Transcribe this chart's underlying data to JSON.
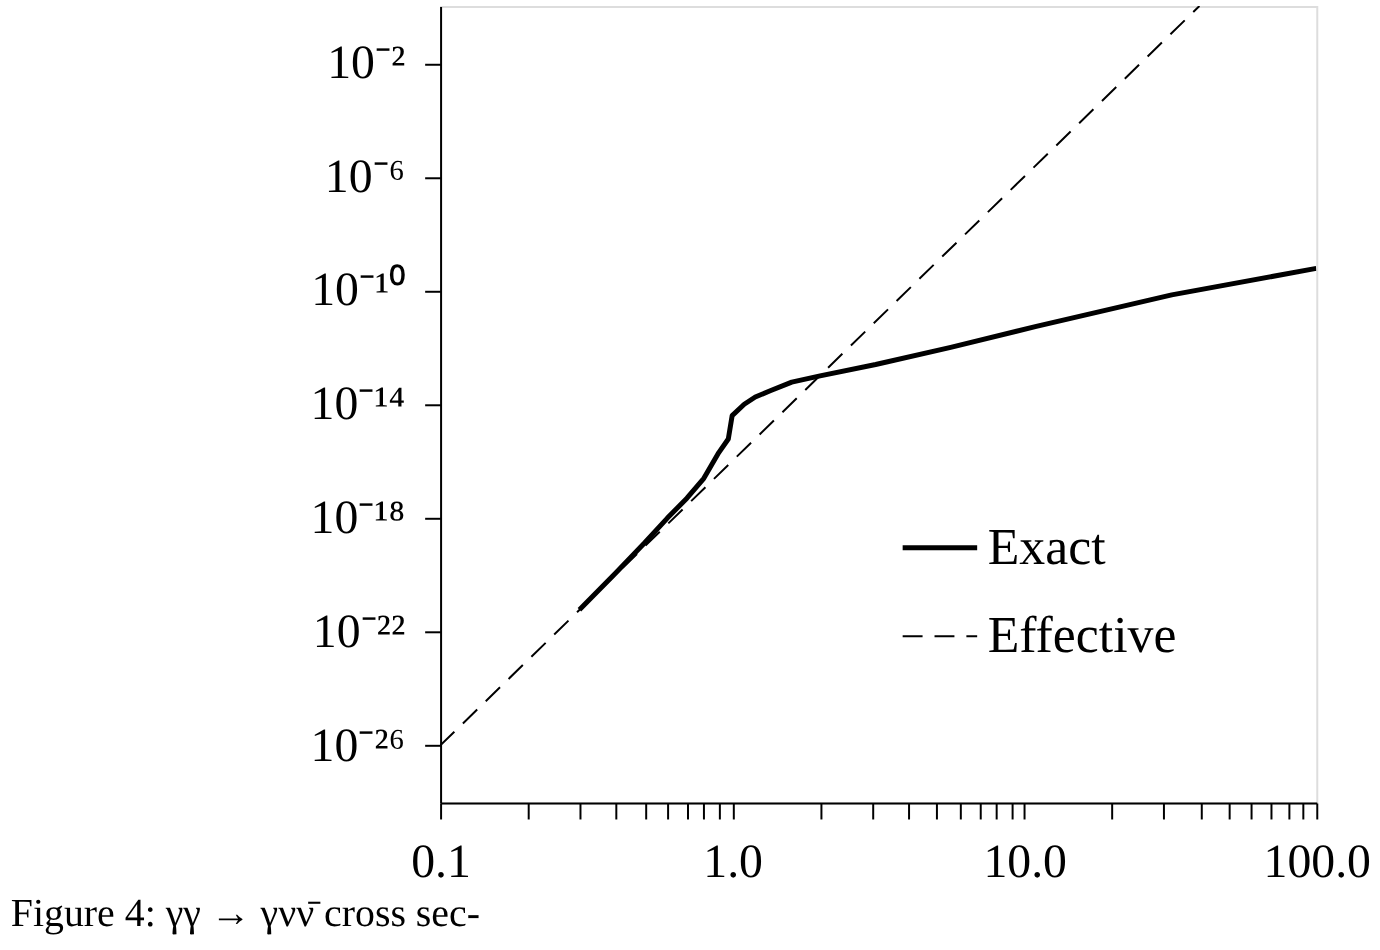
{
  "chart_data": {
    "type": "line",
    "log": "xy",
    "xlim": [
      0.1,
      100
    ],
    "ylim": [
      1e-28,
      1
    ],
    "xticks": [
      {
        "value": 0.1,
        "label": "0.1"
      },
      {
        "value": 0.2,
        "label": null
      },
      {
        "value": 0.3,
        "label": null
      },
      {
        "value": 0.4,
        "label": null
      },
      {
        "value": 0.5,
        "label": null
      },
      {
        "value": 0.6,
        "label": null
      },
      {
        "value": 0.7,
        "label": null
      },
      {
        "value": 0.8,
        "label": null
      },
      {
        "value": 0.9,
        "label": null
      },
      {
        "value": 1,
        "label": "1.0"
      },
      {
        "value": 2,
        "label": null
      },
      {
        "value": 3,
        "label": null
      },
      {
        "value": 4,
        "label": null
      },
      {
        "value": 5,
        "label": null
      },
      {
        "value": 6,
        "label": null
      },
      {
        "value": 7,
        "label": null
      },
      {
        "value": 8,
        "label": null
      },
      {
        "value": 9,
        "label": null
      },
      {
        "value": 10,
        "label": "10.0"
      },
      {
        "value": 20,
        "label": null
      },
      {
        "value": 30,
        "label": null
      },
      {
        "value": 40,
        "label": null
      },
      {
        "value": 50,
        "label": null
      },
      {
        "value": 60,
        "label": null
      },
      {
        "value": 70,
        "label": null
      },
      {
        "value": 80,
        "label": null
      },
      {
        "value": 90,
        "label": null
      },
      {
        "value": 100,
        "label": "100.0"
      }
    ],
    "yticks": [
      {
        "value": 1e-26,
        "label": "10⁻²⁶"
      },
      {
        "value": 1e-22,
        "label": "10⁻²²"
      },
      {
        "value": 1e-18,
        "label": "10⁻¹⁸"
      },
      {
        "value": 1e-14,
        "label": "10⁻¹⁴"
      },
      {
        "value": 1e-10,
        "label": "10⁻¹⁰"
      },
      {
        "value": 1e-06,
        "label": "10⁻⁶"
      },
      {
        "value": 0.01,
        "label": "10⁻²"
      }
    ],
    "series": [
      {
        "name": "Exact",
        "color": "#000000",
        "line_style": "solid",
        "x": [
          0.3,
          0.4,
          0.5,
          0.6,
          0.7,
          0.8,
          0.9,
          0.97,
          1.0,
          1.1,
          1.2,
          1.35,
          1.6,
          2.0,
          3.1,
          5.6,
          11,
          32,
          100
        ],
        "values": [
          6e-22,
          1.2e-20,
          1.3e-19,
          1e-18,
          5e-18,
          2.5e-17,
          2e-16,
          6e-16,
          4e-15,
          1e-14,
          1.8e-14,
          3e-14,
          6e-14,
          1e-13,
          2.5e-13,
          1e-12,
          5.5e-12,
          7e-11,
          6e-10
        ]
      },
      {
        "name": "Effective",
        "color": "#000000",
        "line_style": "dashed",
        "x": [
          0.1,
          1,
          10,
          39.8
        ],
        "values": [
          1e-26,
          1e-16,
          1e-06,
          1
        ]
      }
    ],
    "legend": "bottom right",
    "grid": false,
    "marker": "none",
    "annotations": [
      "Figure 4: γγ → γνν̄ cross sec-"
    ]
  }
}
